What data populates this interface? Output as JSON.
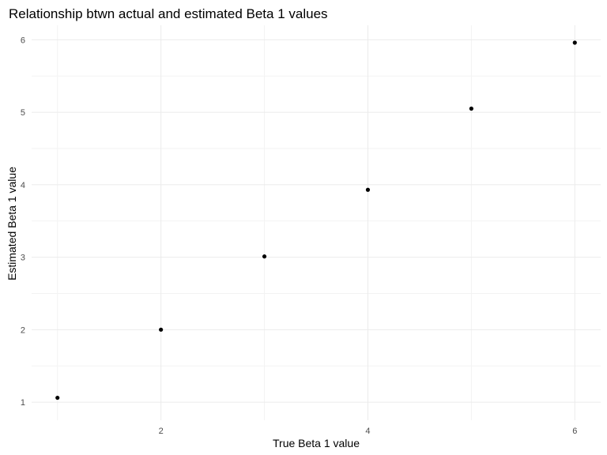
{
  "chart_data": {
    "type": "scatter",
    "title": "Relationship btwn actual and estimated Beta 1 values",
    "xlabel": "True Beta 1 value",
    "ylabel": "Estimated Beta 1 value",
    "x": [
      1,
      2,
      3,
      4,
      5,
      6
    ],
    "y": [
      1.06,
      2.0,
      3.01,
      3.93,
      5.05,
      5.96
    ],
    "xlim": [
      0.75,
      6.25
    ],
    "ylim": [
      0.75,
      6.2
    ],
    "xticks": [
      2,
      4,
      6
    ],
    "yticks": [
      1,
      2,
      3,
      4,
      5,
      6
    ],
    "grid": true,
    "point_color": "#000000",
    "background": "#ffffff"
  }
}
